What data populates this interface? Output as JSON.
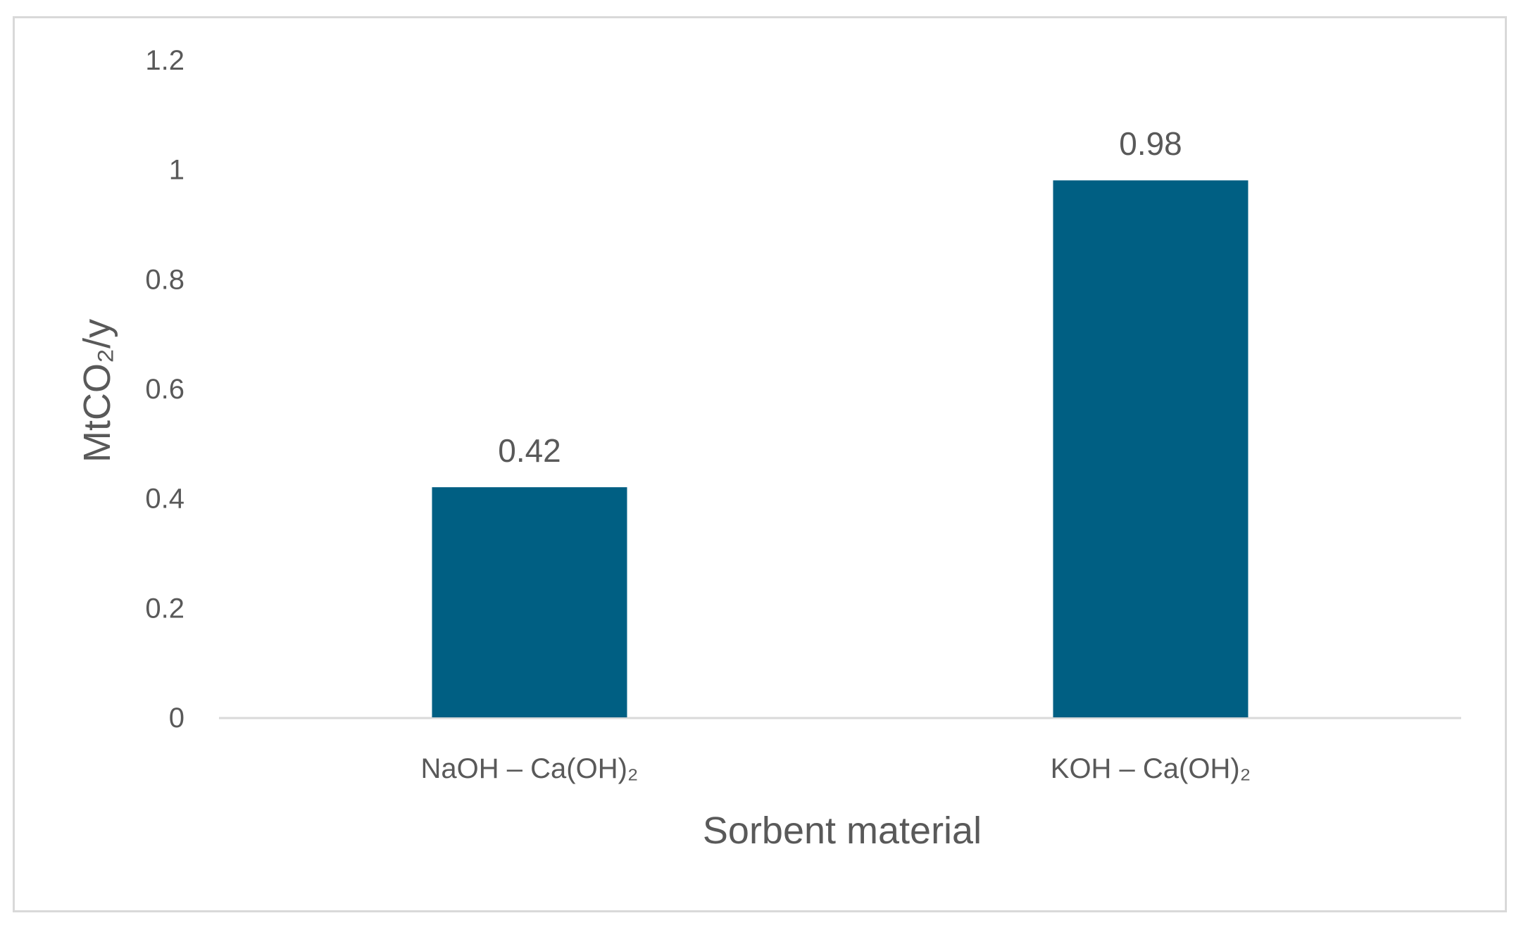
{
  "chart_data": {
    "type": "bar",
    "categories": [
      "NaOH – Ca(OH)₂",
      "KOH – Ca(OH)₂"
    ],
    "values": [
      0.42,
      0.98
    ],
    "data_labels": [
      "0.42",
      "0.98"
    ],
    "title": "",
    "xlabel": "Sorbent material",
    "ylabel": "MtCO₂/y",
    "ylim": [
      0,
      1.2
    ],
    "yticks": [
      "0",
      "0.2",
      "0.4",
      "0.6",
      "0.8",
      "1",
      "1.2"
    ],
    "grid": false,
    "legend": "none",
    "bar_color": "#005f83",
    "axis_color": "#d9d9d9"
  }
}
